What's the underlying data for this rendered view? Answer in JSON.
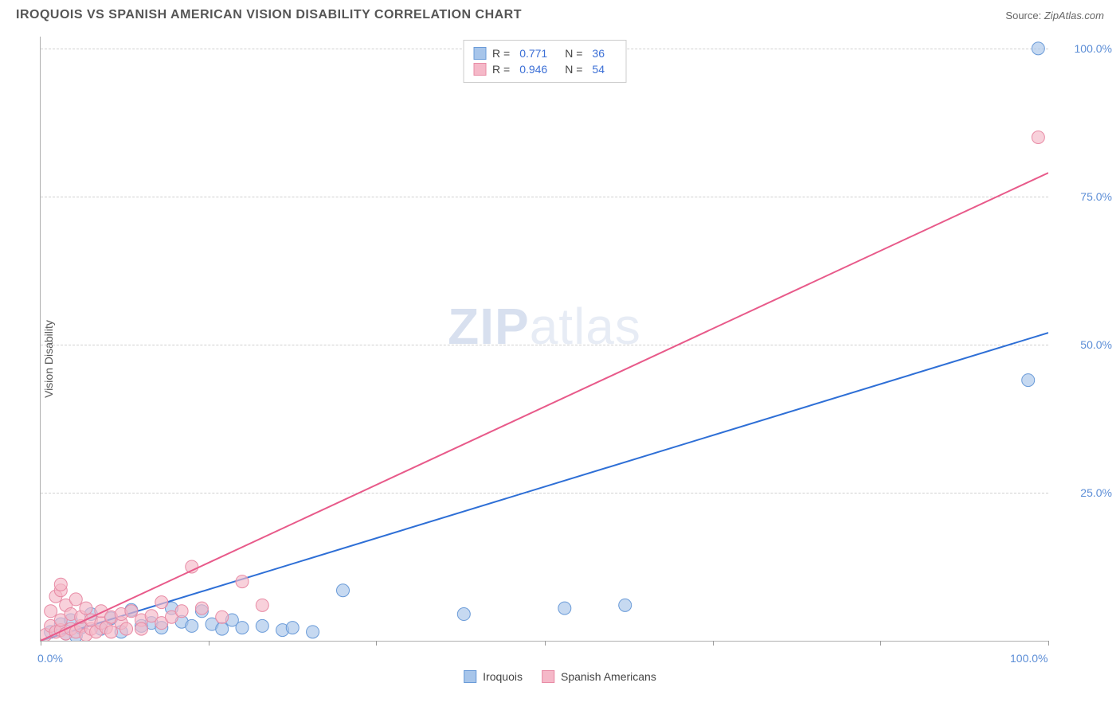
{
  "header": {
    "title": "IROQUOIS VS SPANISH AMERICAN VISION DISABILITY CORRELATION CHART",
    "source_label": "Source:",
    "source_value": "ZipAtlas.com"
  },
  "chart": {
    "type": "scatter",
    "ylabel": "Vision Disability",
    "xlim": [
      0,
      100
    ],
    "ylim": [
      0,
      102
    ],
    "xtick_positions": [
      0,
      16.7,
      33.3,
      50,
      66.7,
      83.3,
      100
    ],
    "xtick_labels_shown": {
      "0": "0.0%",
      "100": "100.0%"
    },
    "ytick_positions": [
      25,
      50,
      75,
      100
    ],
    "ytick_labels": [
      "25.0%",
      "50.0%",
      "75.0%",
      "100.0%"
    ],
    "grid_color": "#d0d0d0",
    "background_color": "#ffffff",
    "axis_color": "#b0b0b0",
    "label_color": "#5b8dd6",
    "ylabel_fontsize": 14,
    "tick_fontsize": 14,
    "watermark_text_bold": "ZIP",
    "watermark_text_rest": "atlas",
    "series": [
      {
        "name": "Iroquois",
        "marker_color": "#a7c5ea",
        "marker_border": "#6a9bd8",
        "line_color": "#2e6fd6",
        "marker_radius": 8,
        "R": "0.771",
        "N": "36",
        "trend": {
          "x1": 0,
          "y1": 0,
          "x2": 100,
          "y2": 52
        },
        "points": [
          [
            1,
            1.5
          ],
          [
            2,
            2.8
          ],
          [
            2.5,
            1.2
          ],
          [
            3,
            3.5
          ],
          [
            3.5,
            0.8
          ],
          [
            4,
            2.2
          ],
          [
            5,
            4.5
          ],
          [
            6,
            2
          ],
          [
            7,
            3.8
          ],
          [
            8,
            1.5
          ],
          [
            9,
            5.2
          ],
          [
            10,
            2.5
          ],
          [
            11,
            3
          ],
          [
            12,
            2.2
          ],
          [
            13,
            5.5
          ],
          [
            14,
            3.2
          ],
          [
            15,
            2.5
          ],
          [
            16,
            5
          ],
          [
            17,
            2.8
          ],
          [
            18,
            2
          ],
          [
            19,
            3.5
          ],
          [
            20,
            2.2
          ],
          [
            22,
            2.5
          ],
          [
            24,
            1.8
          ],
          [
            25,
            2.2
          ],
          [
            27,
            1.5
          ],
          [
            30,
            8.5
          ],
          [
            42,
            4.5
          ],
          [
            52,
            5.5
          ],
          [
            58,
            6
          ],
          [
            98,
            44
          ],
          [
            99,
            100
          ]
        ]
      },
      {
        "name": "Spanish Americans",
        "marker_color": "#f5b8c8",
        "marker_border": "#e88ba5",
        "line_color": "#e85a8a",
        "marker_radius": 8,
        "R": "0.946",
        "N": "54",
        "trend": {
          "x1": 0,
          "y1": 0,
          "x2": 100,
          "y2": 79
        },
        "points": [
          [
            0.5,
            1
          ],
          [
            1,
            2.5
          ],
          [
            1,
            5
          ],
          [
            1.5,
            1.5
          ],
          [
            1.5,
            7.5
          ],
          [
            2,
            1.8
          ],
          [
            2,
            3.5
          ],
          [
            2,
            8.5
          ],
          [
            2,
            9.5
          ],
          [
            2.5,
            1.2
          ],
          [
            2.5,
            6
          ],
          [
            3,
            2
          ],
          [
            3,
            4.5
          ],
          [
            3.5,
            1.5
          ],
          [
            3.5,
            7
          ],
          [
            4,
            2.5
          ],
          [
            4,
            4
          ],
          [
            4.5,
            1
          ],
          [
            4.5,
            5.5
          ],
          [
            5,
            2
          ],
          [
            5,
            3.5
          ],
          [
            5.5,
            1.5
          ],
          [
            6,
            3
          ],
          [
            6,
            5
          ],
          [
            6.5,
            2.2
          ],
          [
            7,
            4
          ],
          [
            7,
            1.5
          ],
          [
            8,
            3
          ],
          [
            8,
            4.5
          ],
          [
            8.5,
            2
          ],
          [
            9,
            5
          ],
          [
            10,
            3.5
          ],
          [
            10,
            2
          ],
          [
            11,
            4.2
          ],
          [
            12,
            3
          ],
          [
            12,
            6.5
          ],
          [
            13,
            4
          ],
          [
            14,
            5
          ],
          [
            15,
            12.5
          ],
          [
            16,
            5.5
          ],
          [
            18,
            4
          ],
          [
            20,
            10
          ],
          [
            22,
            6
          ],
          [
            99,
            85
          ]
        ]
      }
    ],
    "legend_top": {
      "border_color": "#cccccc",
      "rows": [
        {
          "swatch_fill": "#a7c5ea",
          "swatch_border": "#6a9bd8",
          "R": "0.771",
          "N": "36"
        },
        {
          "swatch_fill": "#f5b8c8",
          "swatch_border": "#e88ba5",
          "R": "0.946",
          "N": "54"
        }
      ]
    },
    "legend_bottom": [
      {
        "swatch_fill": "#a7c5ea",
        "swatch_border": "#6a9bd8",
        "label": "Iroquois"
      },
      {
        "swatch_fill": "#f5b8c8",
        "swatch_border": "#e88ba5",
        "label": "Spanish Americans"
      }
    ]
  }
}
